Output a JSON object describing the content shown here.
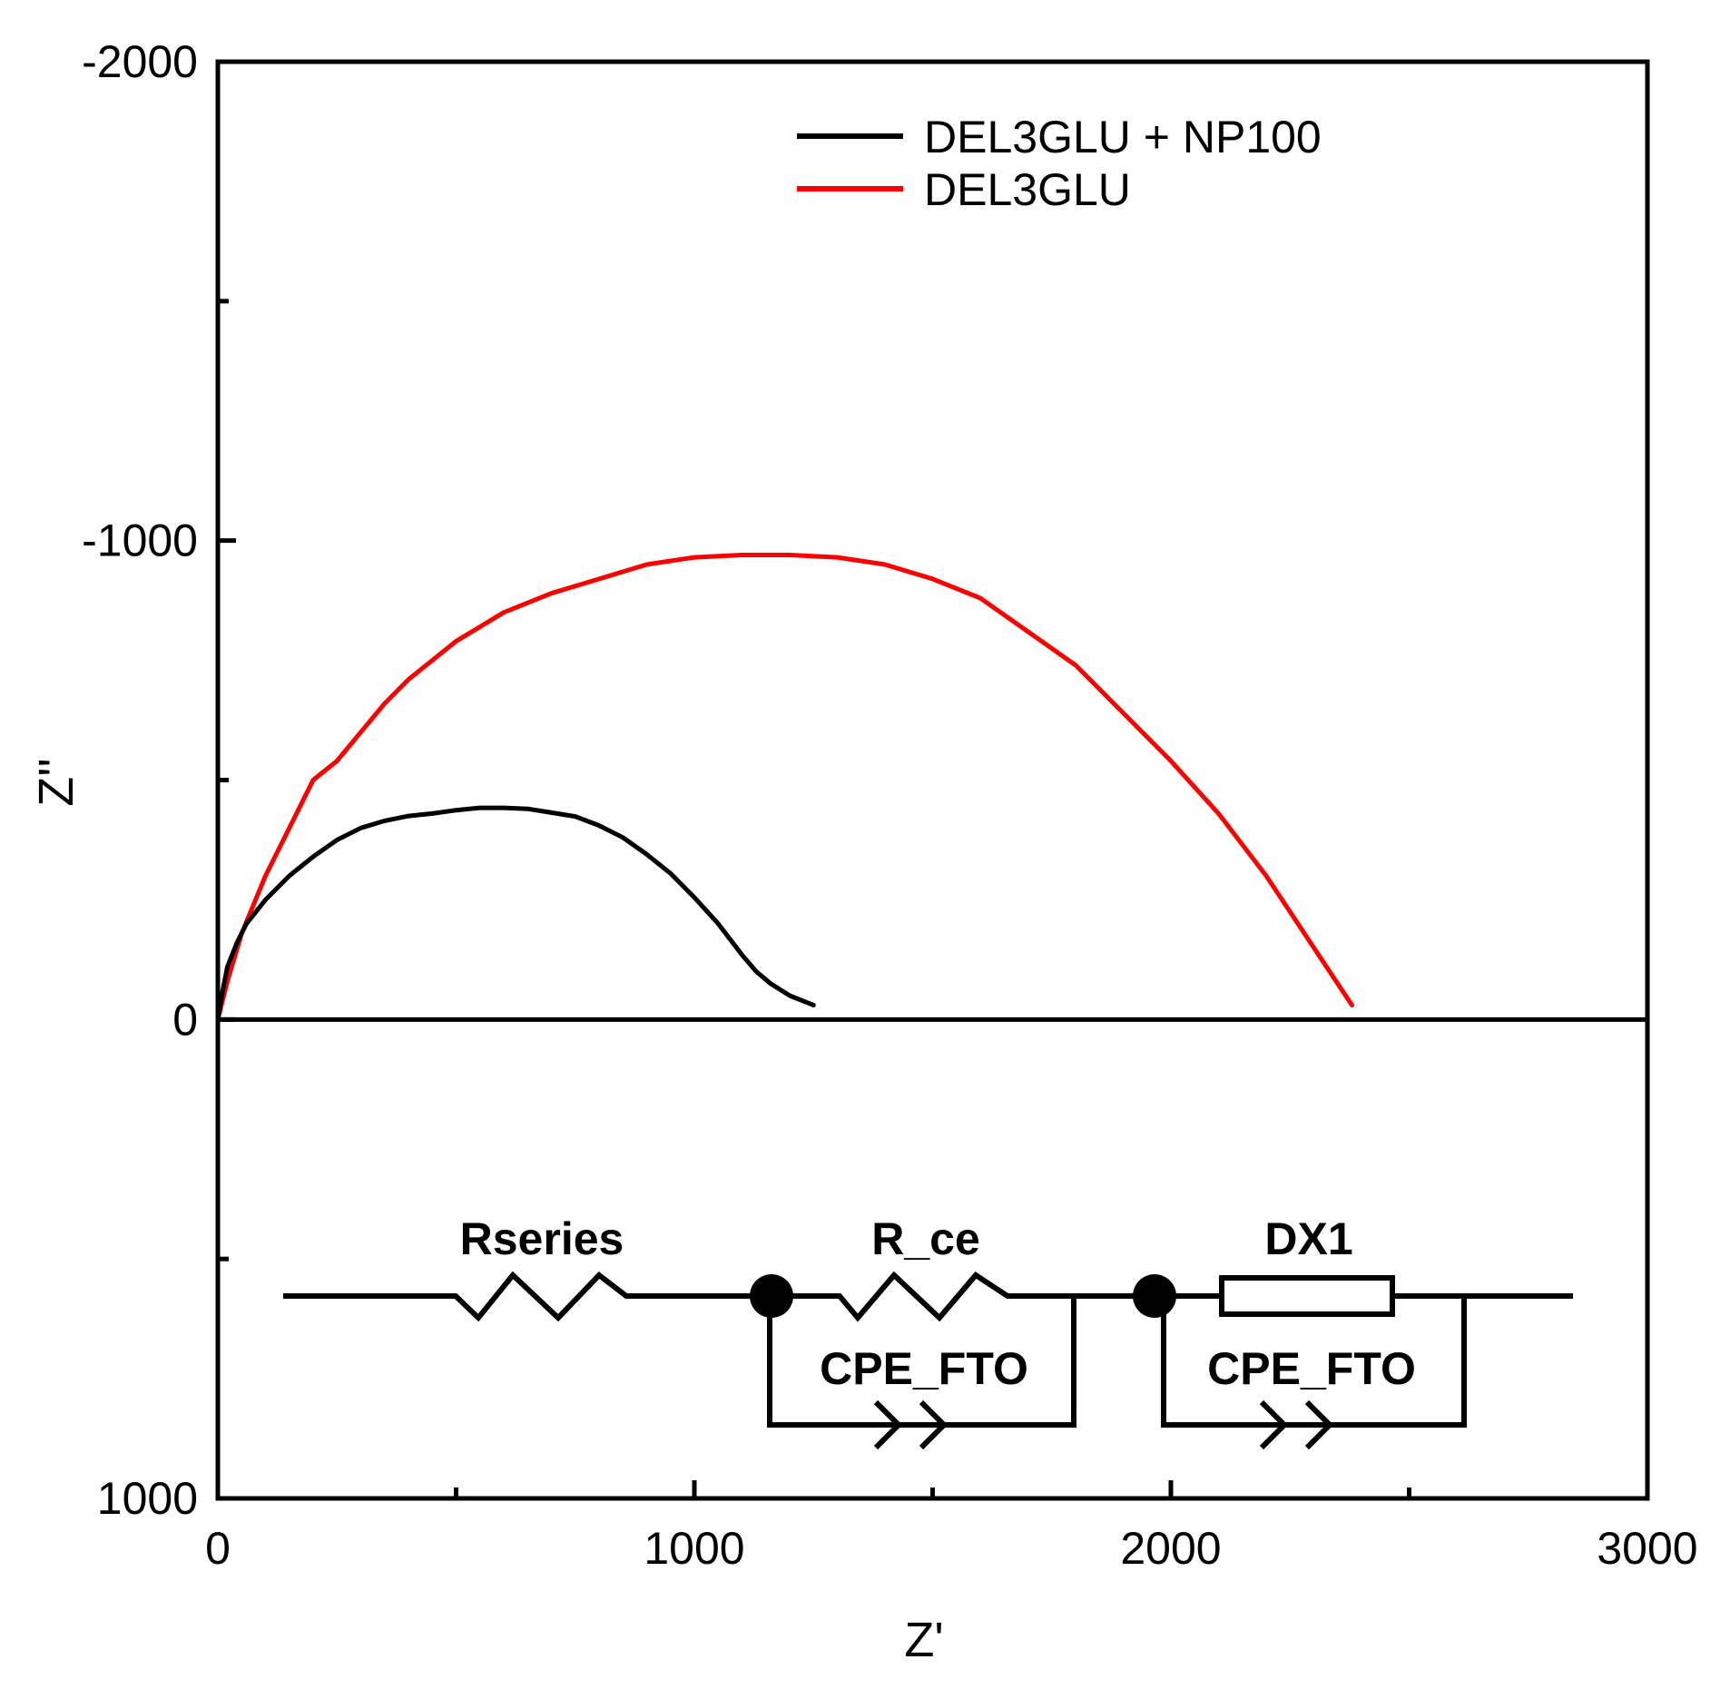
{
  "chart_data": {
    "type": "line",
    "xlabel": "Z'",
    "ylabel": "Z''",
    "xlim": [
      0,
      3000
    ],
    "ylim": [
      1000,
      -2000
    ],
    "y_inverted": true,
    "x_ticks": [
      0,
      1000,
      2000,
      3000
    ],
    "x_tick_labels": [
      "0",
      "1000",
      "2000",
      "3000"
    ],
    "x_minor_ticks": [
      500,
      1500,
      2500
    ],
    "y_ticks": [
      -2000,
      -1000,
      0,
      1000
    ],
    "y_tick_labels": [
      "-2000",
      "-1000",
      "0",
      "1000"
    ],
    "y_minor_ticks": [
      -1500,
      -500,
      500
    ],
    "zero_line": true,
    "legend_position": "top-right",
    "series": [
      {
        "name": "DEL3GLU + NP100",
        "color": "#000000",
        "x": [
          0,
          10,
          20,
          40,
          60,
          100,
          150,
          200,
          250,
          300,
          350,
          400,
          450,
          500,
          550,
          600,
          650,
          700,
          750,
          800,
          850,
          900,
          950,
          1000,
          1050,
          1100,
          1130,
          1160,
          1200,
          1250
        ],
        "y": [
          0,
          -60,
          -110,
          -160,
          -200,
          -250,
          -300,
          -340,
          -375,
          -400,
          -415,
          -425,
          -430,
          -437,
          -442,
          -442,
          -440,
          -432,
          -424,
          -405,
          -380,
          -345,
          -305,
          -255,
          -200,
          -135,
          -100,
          -75,
          -50,
          -30
        ]
      },
      {
        "name": "DEL3GLU",
        "color": "#ff0000",
        "x": [
          0,
          20,
          50,
          100,
          150,
          200,
          250,
          300,
          350,
          400,
          450,
          500,
          550,
          600,
          700,
          800,
          900,
          1000,
          1100,
          1200,
          1300,
          1400,
          1500,
          1600,
          1700,
          1800,
          1900,
          2000,
          2100,
          2200,
          2300,
          2380
        ],
        "y": [
          0,
          -80,
          -180,
          -300,
          -400,
          -500,
          -540,
          -600,
          -660,
          -710,
          -750,
          -790,
          -820,
          -850,
          -890,
          -920,
          -950,
          -965,
          -970,
          -970,
          -965,
          -950,
          -920,
          -880,
          -810,
          -740,
          -640,
          -540,
          -430,
          -300,
          -150,
          -30
        ]
      }
    ],
    "inset_circuit": {
      "labels": [
        "Rseries",
        "R_ce",
        "CPE_FTO",
        "DX1",
        "CPE_FTO"
      ]
    }
  }
}
